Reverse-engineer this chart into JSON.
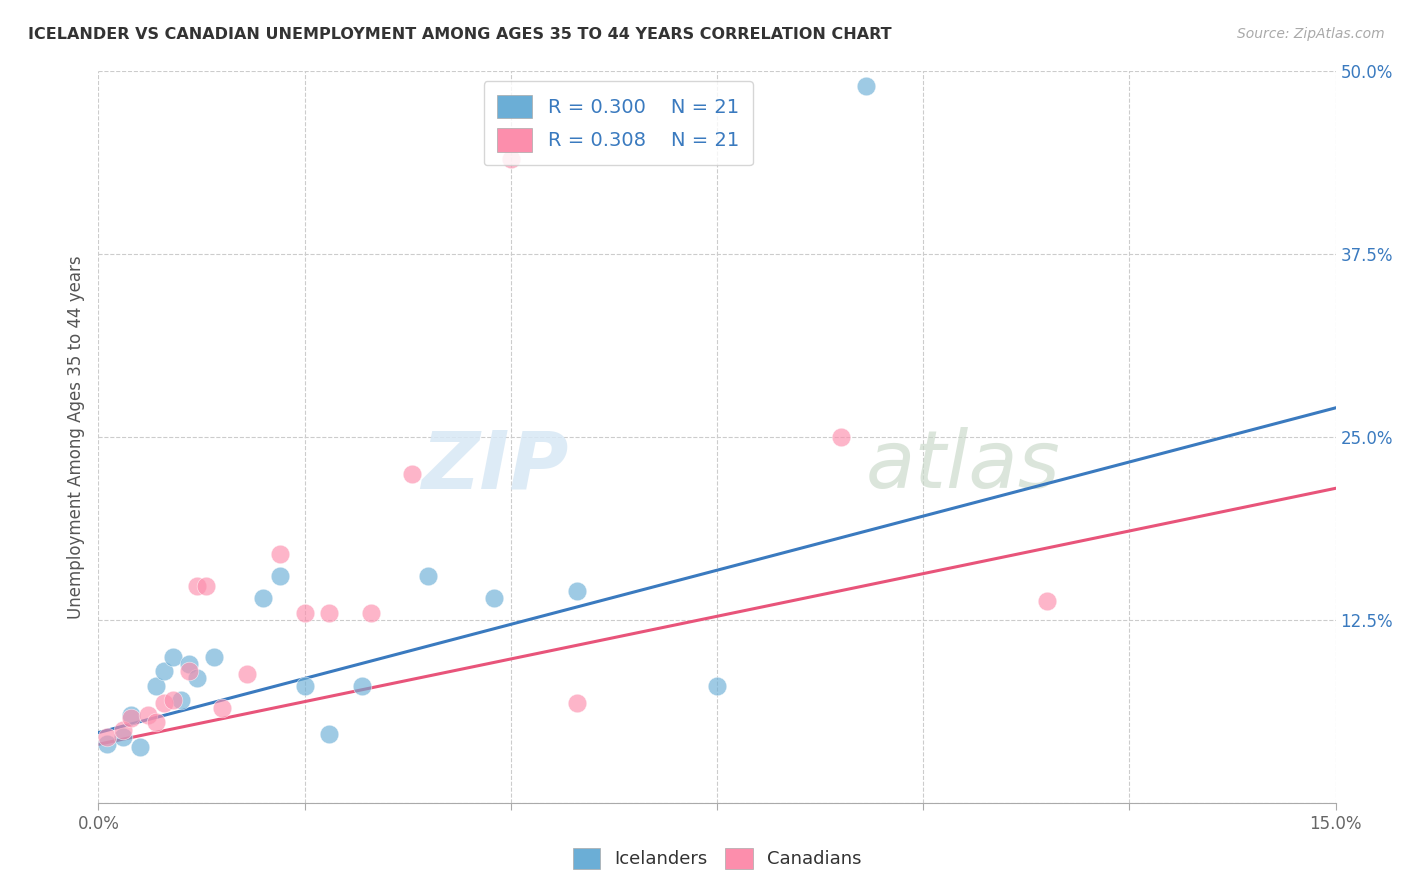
{
  "title": "ICELANDER VS CANADIAN UNEMPLOYMENT AMONG AGES 35 TO 44 YEARS CORRELATION CHART",
  "source": "Source: ZipAtlas.com",
  "xlabel": "",
  "ylabel": "Unemployment Among Ages 35 to 44 years",
  "xlim": [
    0.0,
    0.15
  ],
  "ylim": [
    0.0,
    0.5
  ],
  "xticks": [
    0.0,
    0.025,
    0.05,
    0.075,
    0.1,
    0.125,
    0.15
  ],
  "xtick_labels": [
    "0.0%",
    "",
    "",
    "",
    "",
    "",
    "15.0%"
  ],
  "ytick_labels": [
    "",
    "12.5%",
    "25.0%",
    "37.5%",
    "50.0%"
  ],
  "yticks": [
    0.0,
    0.125,
    0.25,
    0.375,
    0.5
  ],
  "blue_color": "#6baed6",
  "pink_color": "#fc8eac",
  "blue_line_color": "#3a7abf",
  "pink_line_color": "#e8547a",
  "legend_r_blue": "R = 0.300",
  "legend_n_blue": "N = 21",
  "legend_r_pink": "R = 0.308",
  "legend_n_pink": "N = 21",
  "legend_label_blue": "Icelanders",
  "legend_label_pink": "Canadians",
  "watermark_zip": "ZIP",
  "watermark_atlas": "atlas",
  "icelanders_x": [
    0.001,
    0.003,
    0.004,
    0.005,
    0.007,
    0.008,
    0.009,
    0.01,
    0.011,
    0.012,
    0.014,
    0.02,
    0.022,
    0.025,
    0.028,
    0.032,
    0.04,
    0.048,
    0.058,
    0.075,
    0.093
  ],
  "icelanders_y": [
    0.04,
    0.045,
    0.06,
    0.038,
    0.08,
    0.09,
    0.1,
    0.07,
    0.095,
    0.085,
    0.1,
    0.14,
    0.155,
    0.08,
    0.047,
    0.08,
    0.155,
    0.14,
    0.145,
    0.08,
    0.49
  ],
  "canadians_x": [
    0.001,
    0.003,
    0.004,
    0.006,
    0.007,
    0.008,
    0.009,
    0.011,
    0.012,
    0.013,
    0.015,
    0.018,
    0.022,
    0.025,
    0.028,
    0.033,
    0.038,
    0.05,
    0.058,
    0.09,
    0.115
  ],
  "canadians_y": [
    0.045,
    0.05,
    0.058,
    0.06,
    0.055,
    0.068,
    0.07,
    0.09,
    0.148,
    0.148,
    0.065,
    0.088,
    0.17,
    0.13,
    0.13,
    0.13,
    0.225,
    0.44,
    0.068,
    0.25,
    0.138
  ],
  "blue_line_x": [
    0.0,
    0.15
  ],
  "blue_line_y": [
    0.048,
    0.27
  ],
  "pink_line_x": [
    0.0,
    0.15
  ],
  "pink_line_y": [
    0.04,
    0.215
  ]
}
